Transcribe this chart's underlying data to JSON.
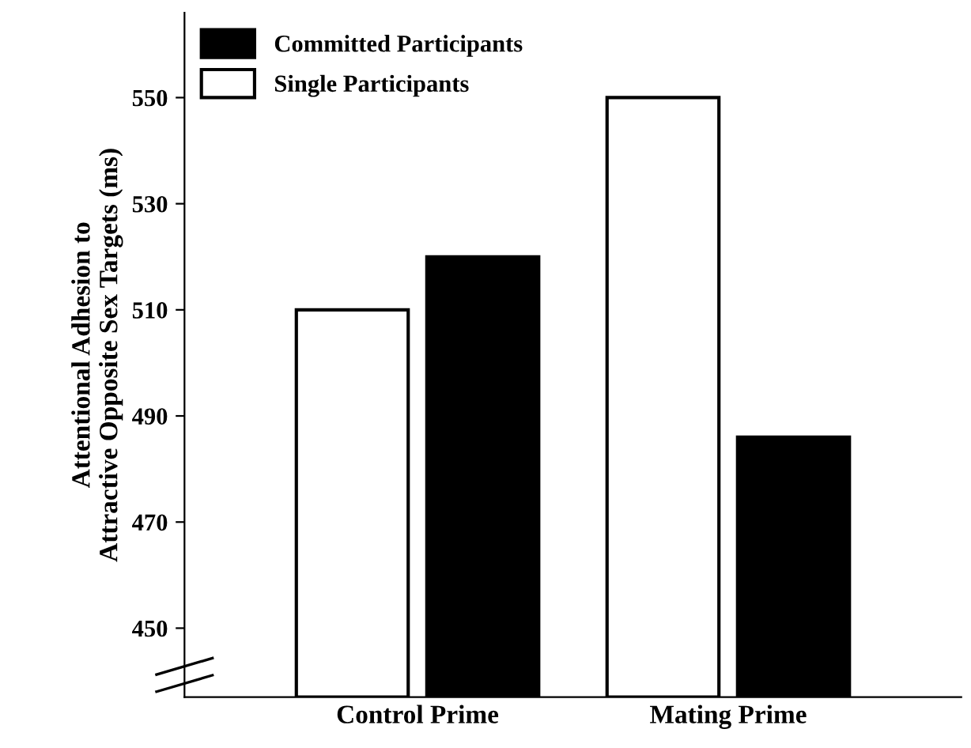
{
  "chart_data": {
    "type": "bar",
    "ylabel": "Attentional Adhesion to\nAttractive Opposite Sex Targets (ms)",
    "categories": [
      "Control Prime",
      "Mating Prime"
    ],
    "series": [
      {
        "name": "Single Participants",
        "color": "#ffffff",
        "values": [
          510,
          550
        ]
      },
      {
        "name": "Committed Participants",
        "color": "#000000",
        "values": [
          520,
          486
        ]
      }
    ],
    "ylim": [
      437,
      566
    ],
    "yticks": [
      450,
      470,
      490,
      510,
      530,
      550
    ],
    "grid": false,
    "legend": "top left"
  }
}
